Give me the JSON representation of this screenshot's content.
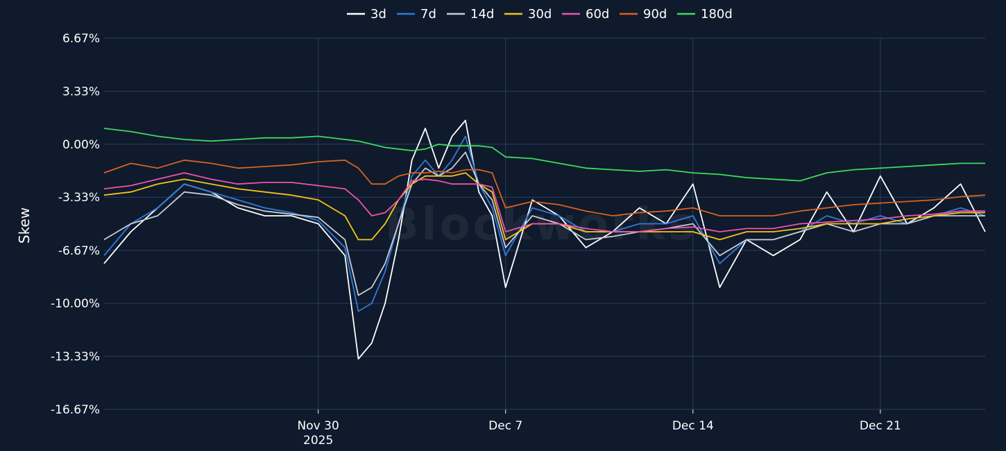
{
  "colors": {
    "background": "#0f1a2c",
    "grid": "#2a3d63",
    "text": "#ffffff"
  },
  "watermark": "Blockworks",
  "chart_data": {
    "type": "line",
    "ylabel": "Skew",
    "y_unit": "%",
    "ylim": [
      -16.67,
      6.67
    ],
    "y_ticks": [
      6.67,
      3.33,
      0.0,
      -3.33,
      -6.67,
      -10.0,
      -13.33,
      -16.67
    ],
    "y_tick_labels": [
      "6.67%",
      "3.33%",
      "0.00%",
      "-3.33%",
      "-6.67%",
      "-10.00%",
      "-13.33%",
      "-16.67%"
    ],
    "xlim": [
      "2025-11-22",
      "2025-12-24T22:00"
    ],
    "x_ticks": [
      "2025-11-30",
      "2025-12-07",
      "2025-12-14",
      "2025-12-21"
    ],
    "x_tick_labels": [
      [
        "Nov 30",
        "2025"
      ],
      [
        "Dec 7"
      ],
      [
        "Dec 14"
      ],
      [
        "Dec 21"
      ]
    ],
    "grid": true,
    "legend_position": "top-center",
    "series": [
      {
        "name": "3d",
        "color": "#ffffff",
        "x": [
          "2025-11-22",
          "2025-11-23",
          "2025-11-24",
          "2025-11-25",
          "2025-11-26",
          "2025-11-27",
          "2025-11-28",
          "2025-11-29",
          "2025-11-30",
          "2025-12-01",
          "2025-12-01T12:00",
          "2025-12-02",
          "2025-12-02T12:00",
          "2025-12-03",
          "2025-12-03T12:00",
          "2025-12-04",
          "2025-12-04T12:00",
          "2025-12-05",
          "2025-12-05T12:00",
          "2025-12-06",
          "2025-12-06T12:00",
          "2025-12-07",
          "2025-12-08",
          "2025-12-09",
          "2025-12-10",
          "2025-12-11",
          "2025-12-12",
          "2025-12-13",
          "2025-12-14",
          "2025-12-15",
          "2025-12-16",
          "2025-12-17",
          "2025-12-18",
          "2025-12-19",
          "2025-12-20",
          "2025-12-21",
          "2025-12-22",
          "2025-12-23",
          "2025-12-24",
          "2025-12-24T22:00"
        ],
        "values": [
          -7.5,
          -5.5,
          -4.0,
          -2.5,
          -3.0,
          -4.0,
          -4.5,
          -4.5,
          -5.0,
          -7.0,
          -13.5,
          -12.5,
          -10.0,
          -6.0,
          -1.0,
          1.0,
          -1.5,
          0.5,
          1.5,
          -3.0,
          -4.5,
          -9.0,
          -3.5,
          -4.5,
          -6.5,
          -5.5,
          -4.0,
          -5.0,
          -2.5,
          -9.0,
          -6.0,
          -7.0,
          -6.0,
          -3.0,
          -5.5,
          -2.0,
          -5.0,
          -4.0,
          -2.5,
          -5.5
        ]
      },
      {
        "name": "7d",
        "color": "#2f7bdc",
        "x": [
          "2025-11-22",
          "2025-11-23",
          "2025-11-24",
          "2025-11-25",
          "2025-11-26",
          "2025-11-27",
          "2025-11-28",
          "2025-11-29",
          "2025-11-30",
          "2025-12-01",
          "2025-12-01T12:00",
          "2025-12-02",
          "2025-12-02T12:00",
          "2025-12-03",
          "2025-12-03T12:00",
          "2025-12-04",
          "2025-12-04T12:00",
          "2025-12-05",
          "2025-12-05T12:00",
          "2025-12-06",
          "2025-12-06T12:00",
          "2025-12-07",
          "2025-12-08",
          "2025-12-09",
          "2025-12-10",
          "2025-12-11",
          "2025-12-12",
          "2025-12-13",
          "2025-12-14",
          "2025-12-15",
          "2025-12-16",
          "2025-12-17",
          "2025-12-18",
          "2025-12-19",
          "2025-12-20",
          "2025-12-21",
          "2025-12-22",
          "2025-12-23",
          "2025-12-24",
          "2025-12-24T22:00"
        ],
        "values": [
          -7.0,
          -5.0,
          -4.0,
          -2.5,
          -3.0,
          -3.5,
          -4.0,
          -4.3,
          -4.8,
          -6.5,
          -10.5,
          -10.0,
          -8.0,
          -5.0,
          -2.0,
          -1.0,
          -2.0,
          -1.0,
          0.5,
          -2.5,
          -4.0,
          -7.0,
          -4.0,
          -4.5,
          -5.5,
          -5.5,
          -5.0,
          -5.0,
          -4.5,
          -7.5,
          -6.0,
          -6.0,
          -5.5,
          -4.5,
          -5.0,
          -4.5,
          -5.0,
          -4.5,
          -4.0,
          -4.5
        ]
      },
      {
        "name": "14d",
        "color": "#c8ccd4",
        "x": [
          "2025-11-22",
          "2025-11-23",
          "2025-11-24",
          "2025-11-25",
          "2025-11-26",
          "2025-11-27",
          "2025-11-28",
          "2025-11-29",
          "2025-11-30",
          "2025-12-01",
          "2025-12-01T12:00",
          "2025-12-02",
          "2025-12-02T12:00",
          "2025-12-03",
          "2025-12-03T12:00",
          "2025-12-04",
          "2025-12-04T12:00",
          "2025-12-05",
          "2025-12-05T12:00",
          "2025-12-06",
          "2025-12-06T12:00",
          "2025-12-07",
          "2025-12-08",
          "2025-12-09",
          "2025-12-10",
          "2025-12-11",
          "2025-12-12",
          "2025-12-13",
          "2025-12-14",
          "2025-12-15",
          "2025-12-16",
          "2025-12-17",
          "2025-12-18",
          "2025-12-19",
          "2025-12-20",
          "2025-12-21",
          "2025-12-22",
          "2025-12-23",
          "2025-12-24",
          "2025-12-24T22:00"
        ],
        "values": [
          -6.0,
          -5.0,
          -4.5,
          -3.0,
          -3.2,
          -3.8,
          -4.2,
          -4.4,
          -4.6,
          -6.0,
          -9.5,
          -9.0,
          -7.5,
          -5.0,
          -2.5,
          -1.5,
          -2.0,
          -1.5,
          -0.5,
          -2.5,
          -3.5,
          -6.5,
          -4.5,
          -5.0,
          -6.0,
          -5.8,
          -5.5,
          -5.3,
          -5.0,
          -7.0,
          -6.0,
          -6.0,
          -5.5,
          -5.0,
          -5.5,
          -5.0,
          -5.0,
          -4.5,
          -4.5,
          -4.5
        ]
      },
      {
        "name": "30d",
        "color": "#f5c518",
        "x": [
          "2025-11-22",
          "2025-11-23",
          "2025-11-24",
          "2025-11-25",
          "2025-11-26",
          "2025-11-27",
          "2025-11-28",
          "2025-11-29",
          "2025-11-30",
          "2025-12-01",
          "2025-12-01T12:00",
          "2025-12-02",
          "2025-12-02T12:00",
          "2025-12-03",
          "2025-12-03T12:00",
          "2025-12-04",
          "2025-12-04T12:00",
          "2025-12-05",
          "2025-12-05T12:00",
          "2025-12-06",
          "2025-12-06T12:00",
          "2025-12-07",
          "2025-12-08",
          "2025-12-09",
          "2025-12-10",
          "2025-12-11",
          "2025-12-12",
          "2025-12-13",
          "2025-12-14",
          "2025-12-15",
          "2025-12-16",
          "2025-12-17",
          "2025-12-18",
          "2025-12-19",
          "2025-12-20",
          "2025-12-21",
          "2025-12-22",
          "2025-12-23",
          "2025-12-24",
          "2025-12-24T22:00"
        ],
        "values": [
          -3.2,
          -3.0,
          -2.5,
          -2.2,
          -2.5,
          -2.8,
          -3.0,
          -3.2,
          -3.5,
          -4.5,
          -6.0,
          -6.0,
          -5.0,
          -3.5,
          -2.5,
          -2.0,
          -2.0,
          -2.0,
          -1.8,
          -2.5,
          -3.0,
          -6.0,
          -5.0,
          -5.0,
          -5.5,
          -5.5,
          -5.5,
          -5.5,
          -5.5,
          -6.0,
          -5.5,
          -5.5,
          -5.3,
          -5.0,
          -5.0,
          -5.0,
          -4.7,
          -4.5,
          -4.3,
          -4.3
        ]
      },
      {
        "name": "60d",
        "color": "#f052b0",
        "x": [
          "2025-11-22",
          "2025-11-23",
          "2025-11-24",
          "2025-11-25",
          "2025-11-26",
          "2025-11-27",
          "2025-11-28",
          "2025-11-29",
          "2025-11-30",
          "2025-12-01",
          "2025-12-01T12:00",
          "2025-12-02",
          "2025-12-02T12:00",
          "2025-12-03",
          "2025-12-03T12:00",
          "2025-12-04",
          "2025-12-04T12:00",
          "2025-12-05",
          "2025-12-05T12:00",
          "2025-12-06",
          "2025-12-06T12:00",
          "2025-12-07",
          "2025-12-08",
          "2025-12-09",
          "2025-12-10",
          "2025-12-11",
          "2025-12-12",
          "2025-12-13",
          "2025-12-14",
          "2025-12-15",
          "2025-12-16",
          "2025-12-17",
          "2025-12-18",
          "2025-12-19",
          "2025-12-20",
          "2025-12-21",
          "2025-12-22",
          "2025-12-23",
          "2025-12-24",
          "2025-12-24T22:00"
        ],
        "values": [
          -2.8,
          -2.6,
          -2.2,
          -1.8,
          -2.2,
          -2.5,
          -2.4,
          -2.4,
          -2.6,
          -2.8,
          -3.5,
          -4.5,
          -4.3,
          -3.5,
          -2.3,
          -2.2,
          -2.3,
          -2.5,
          -2.5,
          -2.5,
          -2.7,
          -5.5,
          -5.0,
          -5.0,
          -5.3,
          -5.5,
          -5.5,
          -5.3,
          -5.2,
          -5.5,
          -5.3,
          -5.3,
          -5.0,
          -4.9,
          -4.8,
          -4.7,
          -4.5,
          -4.4,
          -4.2,
          -4.2
        ]
      },
      {
        "name": "90d",
        "color": "#d9621e",
        "x": [
          "2025-11-22",
          "2025-11-23",
          "2025-11-24",
          "2025-11-25",
          "2025-11-26",
          "2025-11-27",
          "2025-11-28",
          "2025-11-29",
          "2025-11-30",
          "2025-12-01",
          "2025-12-01T12:00",
          "2025-12-02",
          "2025-12-02T12:00",
          "2025-12-03",
          "2025-12-03T12:00",
          "2025-12-04",
          "2025-12-04T12:00",
          "2025-12-05",
          "2025-12-05T12:00",
          "2025-12-06",
          "2025-12-06T12:00",
          "2025-12-07",
          "2025-12-08",
          "2025-12-09",
          "2025-12-10",
          "2025-12-11",
          "2025-12-12",
          "2025-12-13",
          "2025-12-14",
          "2025-12-15",
          "2025-12-16",
          "2025-12-17",
          "2025-12-18",
          "2025-12-19",
          "2025-12-20",
          "2025-12-21",
          "2025-12-22",
          "2025-12-23",
          "2025-12-24",
          "2025-12-24T22:00"
        ],
        "values": [
          -1.8,
          -1.2,
          -1.5,
          -1.0,
          -1.2,
          -1.5,
          -1.4,
          -1.3,
          -1.1,
          -1.0,
          -1.5,
          -2.5,
          -2.5,
          -2.0,
          -1.8,
          -1.8,
          -1.7,
          -1.8,
          -1.6,
          -1.6,
          -1.8,
          -4.0,
          -3.6,
          -3.8,
          -4.2,
          -4.5,
          -4.3,
          -4.2,
          -4.0,
          -4.5,
          -4.5,
          -4.5,
          -4.2,
          -4.0,
          -3.8,
          -3.7,
          -3.6,
          -3.5,
          -3.3,
          -3.2
        ]
      },
      {
        "name": "180d",
        "color": "#3ddc5c",
        "x": [
          "2025-11-22",
          "2025-11-23",
          "2025-11-24",
          "2025-11-25",
          "2025-11-26",
          "2025-11-27",
          "2025-11-28",
          "2025-11-29",
          "2025-11-30",
          "2025-12-01",
          "2025-12-01T12:00",
          "2025-12-02",
          "2025-12-02T12:00",
          "2025-12-03",
          "2025-12-03T12:00",
          "2025-12-04",
          "2025-12-04T12:00",
          "2025-12-05",
          "2025-12-05T12:00",
          "2025-12-06",
          "2025-12-06T12:00",
          "2025-12-07",
          "2025-12-08",
          "2025-12-09",
          "2025-12-10",
          "2025-12-11",
          "2025-12-12",
          "2025-12-13",
          "2025-12-14",
          "2025-12-15",
          "2025-12-16",
          "2025-12-17",
          "2025-12-18",
          "2025-12-19",
          "2025-12-20",
          "2025-12-21",
          "2025-12-22",
          "2025-12-23",
          "2025-12-24",
          "2025-12-24T22:00"
        ],
        "values": [
          1.0,
          0.8,
          0.5,
          0.3,
          0.2,
          0.3,
          0.4,
          0.4,
          0.5,
          0.3,
          0.2,
          0.0,
          -0.2,
          -0.3,
          -0.4,
          -0.3,
          0.0,
          -0.1,
          -0.1,
          -0.1,
          -0.2,
          -0.8,
          -0.9,
          -1.2,
          -1.5,
          -1.6,
          -1.7,
          -1.6,
          -1.8,
          -1.9,
          -2.1,
          -2.2,
          -2.3,
          -1.8,
          -1.6,
          -1.5,
          -1.4,
          -1.3,
          -1.2,
          -1.2
        ]
      }
    ]
  }
}
